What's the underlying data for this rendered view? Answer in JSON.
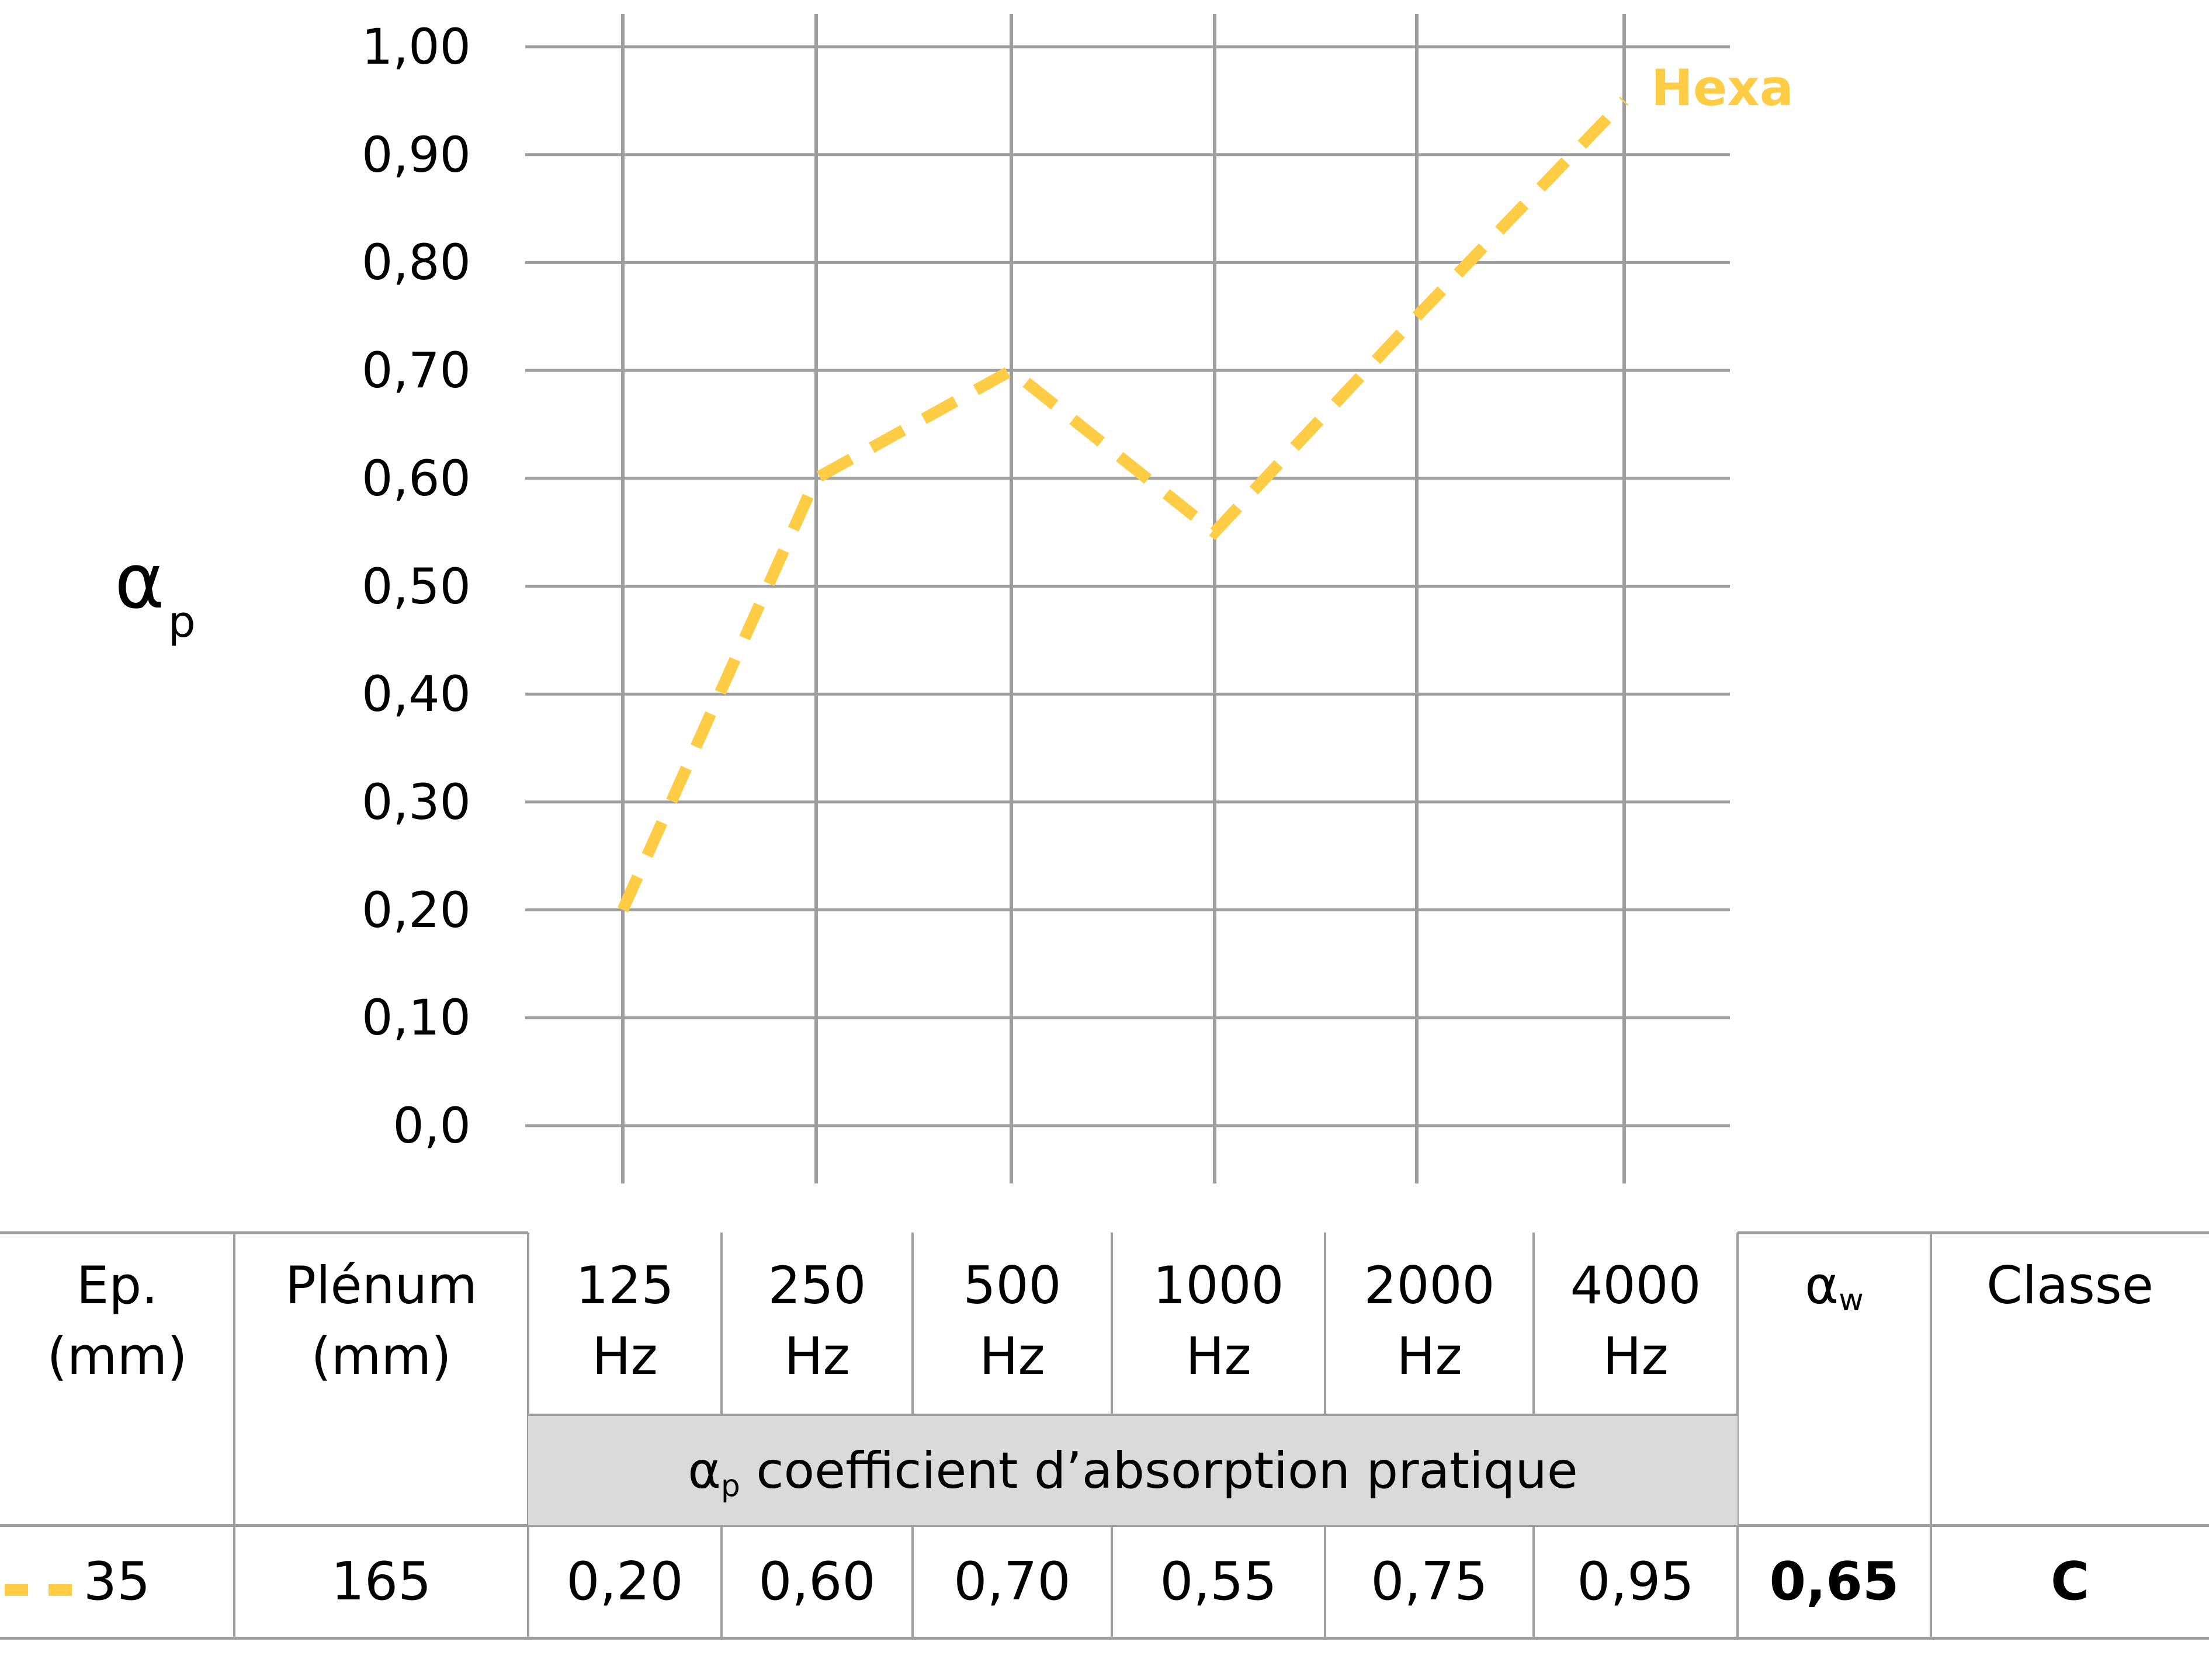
{
  "chart_data": {
    "type": "line",
    "title": "",
    "xlabel": "",
    "ylabel": "αp",
    "ylabel_sub": "p",
    "ylim": [
      0.0,
      1.0
    ],
    "grid": true,
    "y_ticks": [
      "1,00",
      "0,90",
      "0,80",
      "0,70",
      "0,60",
      "0,50",
      "0,40",
      "0,30",
      "0,20",
      "0,10",
      "0,0"
    ],
    "categories": [
      "125 Hz",
      "250 Hz",
      "500 Hz",
      "1000 Hz",
      "2000 Hz",
      "4000 Hz"
    ],
    "series": [
      {
        "name": "Hexa",
        "values": [
          0.2,
          0.6,
          0.7,
          0.55,
          0.75,
          0.95
        ],
        "color": "#ffcd45",
        "style": "dashed"
      }
    ],
    "annotations": [
      "Hexa"
    ]
  },
  "axis": {
    "title_main": "α",
    "title_sub": "p"
  },
  "series_label": "Hexa",
  "colors": {
    "series": "#ffcd45",
    "grid": "#9e9e9e",
    "band": "#dadada"
  },
  "table": {
    "headers": {
      "ep": "Ep.",
      "ep_unit": "(mm)",
      "plenum": "Plénum",
      "plenum_unit": "(mm)",
      "freqs": [
        {
          "num": "125",
          "unit": "Hz"
        },
        {
          "num": "250",
          "unit": "Hz"
        },
        {
          "num": "500",
          "unit": "Hz"
        },
        {
          "num": "1000",
          "unit": "Hz"
        },
        {
          "num": "2000",
          "unit": "Hz"
        },
        {
          "num": "4000",
          "unit": "Hz"
        }
      ],
      "aw_main": "α",
      "aw_sub": "w",
      "classe": "Classe"
    },
    "band": {
      "symbol": "α",
      "symbol_sub": "p",
      "text": " coefficient d’absorption pratique"
    },
    "row": {
      "ep": "35",
      "plenum": "165",
      "values": [
        "0,20",
        "0,60",
        "0,70",
        "0,55",
        "0,75",
        "0,95"
      ],
      "aw": "0,65",
      "classe": "C"
    }
  }
}
